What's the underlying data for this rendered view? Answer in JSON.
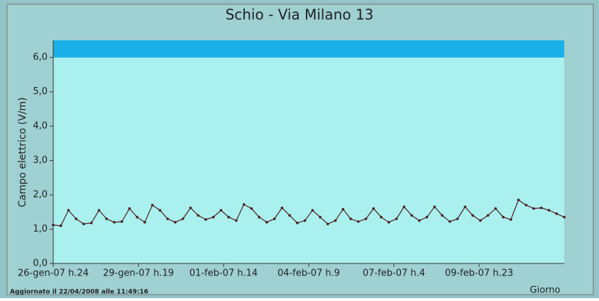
{
  "chart_data": {
    "type": "line",
    "title": "Schio - Via Milano 13",
    "y_label": "Campo elettrico (V/m)",
    "x_label": "Giorno",
    "footer": "Aggiornato il 22/04/2008 alle 11:49:16",
    "ylim": [
      0,
      6.5
    ],
    "yticks": [
      {
        "value": 0,
        "label": "0,0"
      },
      {
        "value": 1,
        "label": "1,0"
      },
      {
        "value": 2,
        "label": "2,0"
      },
      {
        "value": 3,
        "label": "3,0"
      },
      {
        "value": 4,
        "label": "4,0"
      },
      {
        "value": 5,
        "label": "5,0"
      },
      {
        "value": 6,
        "label": "6,0"
      }
    ],
    "xlim": [
      0,
      402
    ],
    "xticks": [
      {
        "value": 0,
        "label": "26-gen-07 h.24"
      },
      {
        "value": 67,
        "label": "29-gen-07 h.19"
      },
      {
        "value": 134,
        "label": "01-feb-07 h.14"
      },
      {
        "value": 201,
        "label": "04-feb-07 h.9"
      },
      {
        "value": 268,
        "label": "07-feb-07 h.4"
      },
      {
        "value": 335,
        "label": "09-feb-07 h.23"
      }
    ],
    "limit": 6,
    "limit_color": "#1ab0e8",
    "plot_color": "#aaf0ee",
    "series": [
      {
        "color": "#4a1e1e",
        "x": [
          0,
          6,
          12,
          18,
          24,
          30,
          36,
          42,
          48,
          54,
          60,
          66,
          72,
          78,
          84,
          90,
          96,
          102,
          108,
          114,
          120,
          126,
          132,
          138,
          144,
          150,
          156,
          162,
          168,
          174,
          180,
          186,
          192,
          198,
          204,
          210,
          216,
          222,
          228,
          234,
          240,
          246,
          252,
          258,
          264,
          270,
          276,
          282,
          288,
          294,
          300,
          306,
          312,
          318,
          324,
          330,
          336,
          342,
          348,
          354,
          360,
          366,
          372,
          378,
          384,
          390,
          396,
          402
        ],
        "values": [
          1.12,
          1.1,
          1.55,
          1.3,
          1.15,
          1.18,
          1.55,
          1.3,
          1.2,
          1.22,
          1.6,
          1.35,
          1.2,
          1.7,
          1.55,
          1.3,
          1.2,
          1.3,
          1.62,
          1.4,
          1.28,
          1.35,
          1.55,
          1.35,
          1.25,
          1.72,
          1.6,
          1.35,
          1.2,
          1.3,
          1.62,
          1.4,
          1.18,
          1.25,
          1.55,
          1.35,
          1.15,
          1.25,
          1.58,
          1.3,
          1.22,
          1.3,
          1.6,
          1.35,
          1.2,
          1.3,
          1.65,
          1.4,
          1.25,
          1.35,
          1.65,
          1.4,
          1.22,
          1.3,
          1.65,
          1.4,
          1.25,
          1.4,
          1.6,
          1.35,
          1.28,
          1.85,
          1.7,
          1.6,
          1.62,
          1.55,
          1.45,
          1.35
        ]
      }
    ]
  }
}
